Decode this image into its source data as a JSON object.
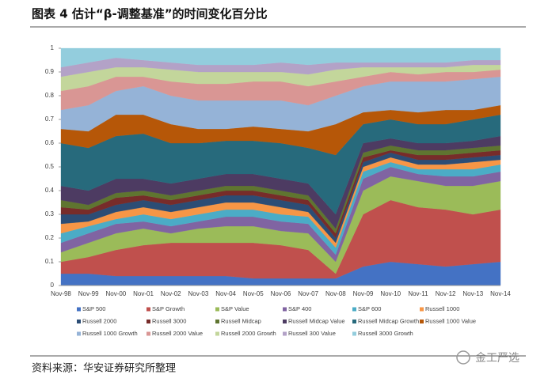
{
  "chart_data": {
    "type": "stacked_area",
    "title": "图表 4 估计“β-调整基准”的时间变化百分比",
    "categories": [
      "Nov-98",
      "Nov-99",
      "Nov-00",
      "Nov-01",
      "Nov-02",
      "Nov-03",
      "Nov-04",
      "Nov-05",
      "Nov-06",
      "Nov-07",
      "Nov-08",
      "Nov-09",
      "Nov-10",
      "Nov-11",
      "Nov-12",
      "Nov-13",
      "Nov-14"
    ],
    "ylim": [
      0,
      1
    ],
    "yticks": [
      0,
      0.1,
      0.2,
      0.3,
      0.4,
      0.5,
      0.6,
      0.7,
      0.8,
      0.9,
      1
    ],
    "series": [
      {
        "name": "S&P 500",
        "color": "#4472c4",
        "values": [
          0.05,
          0.05,
          0.04,
          0.04,
          0.04,
          0.04,
          0.04,
          0.03,
          0.03,
          0.03,
          0.03,
          0.08,
          0.1,
          0.09,
          0.08,
          0.09,
          0.1
        ]
      },
      {
        "name": "S&P Growth",
        "color": "#c0504d",
        "values": [
          0.05,
          0.07,
          0.11,
          0.13,
          0.14,
          0.14,
          0.14,
          0.15,
          0.14,
          0.12,
          0.02,
          0.22,
          0.26,
          0.24,
          0.24,
          0.21,
          0.22
        ]
      },
      {
        "name": "S&P Value",
        "color": "#9bbb59",
        "values": [
          0.04,
          0.06,
          0.07,
          0.07,
          0.04,
          0.06,
          0.07,
          0.07,
          0.06,
          0.07,
          0.05,
          0.1,
          0.1,
          0.11,
          0.1,
          0.12,
          0.12
        ]
      },
      {
        "name": "S&P 400",
        "color": "#8064a2",
        "values": [
          0.04,
          0.04,
          0.04,
          0.03,
          0.03,
          0.03,
          0.04,
          0.04,
          0.04,
          0.04,
          0.03,
          0.05,
          0.04,
          0.03,
          0.04,
          0.04,
          0.04
        ]
      },
      {
        "name": "S&P 600",
        "color": "#4bacc6",
        "values": [
          0.04,
          0.03,
          0.02,
          0.03,
          0.03,
          0.03,
          0.03,
          0.03,
          0.03,
          0.03,
          0.03,
          0.03,
          0.02,
          0.02,
          0.03,
          0.03,
          0.03
        ]
      },
      {
        "name": "Russell 1000",
        "color": "#f79646",
        "values": [
          0.04,
          0.02,
          0.03,
          0.03,
          0.03,
          0.03,
          0.03,
          0.03,
          0.03,
          0.02,
          0.02,
          0.02,
          0.02,
          0.02,
          0.02,
          0.03,
          0.02
        ]
      },
      {
        "name": "Russell 2000",
        "color": "#2c4d75",
        "values": [
          0.04,
          0.03,
          0.03,
          0.03,
          0.03,
          0.03,
          0.03,
          0.03,
          0.03,
          0.03,
          0.02,
          0.02,
          0.02,
          0.02,
          0.02,
          0.02,
          0.02
        ]
      },
      {
        "name": "Russell 3000",
        "color": "#772c2a",
        "values": [
          0.03,
          0.02,
          0.03,
          0.02,
          0.02,
          0.02,
          0.02,
          0.02,
          0.02,
          0.02,
          0.02,
          0.02,
          0.01,
          0.02,
          0.02,
          0.02,
          0.02
        ]
      },
      {
        "name": "Russell Midcap",
        "color": "#5f7530",
        "values": [
          0.03,
          0.02,
          0.02,
          0.02,
          0.02,
          0.02,
          0.02,
          0.02,
          0.02,
          0.02,
          0.02,
          0.02,
          0.02,
          0.02,
          0.02,
          0.02,
          0.02
        ]
      },
      {
        "name": "Russell Midcap Value",
        "color": "#4d3b62",
        "values": [
          0.06,
          0.06,
          0.06,
          0.05,
          0.05,
          0.05,
          0.05,
          0.05,
          0.05,
          0.05,
          0.06,
          0.04,
          0.03,
          0.03,
          0.03,
          0.03,
          0.04
        ]
      },
      {
        "name": "Russell Midcap Growth",
        "color": "#276a7c",
        "values": [
          0.18,
          0.18,
          0.18,
          0.19,
          0.17,
          0.15,
          0.14,
          0.14,
          0.15,
          0.15,
          0.25,
          0.08,
          0.08,
          0.08,
          0.08,
          0.09,
          0.09
        ]
      },
      {
        "name": "Russell 1000 Value",
        "color": "#b65708",
        "values": [
          0.06,
          0.07,
          0.09,
          0.08,
          0.08,
          0.06,
          0.05,
          0.06,
          0.06,
          0.07,
          0.13,
          0.05,
          0.04,
          0.05,
          0.06,
          0.04,
          0.04
        ]
      },
      {
        "name": "Russell 1000 Growth",
        "color": "#95b3d7",
        "values": [
          0.08,
          0.11,
          0.1,
          0.12,
          0.12,
          0.12,
          0.12,
          0.11,
          0.12,
          0.11,
          0.12,
          0.11,
          0.12,
          0.13,
          0.12,
          0.13,
          0.12
        ]
      },
      {
        "name": "Russell 2000 Value",
        "color": "#d99694",
        "values": [
          0.08,
          0.08,
          0.06,
          0.04,
          0.06,
          0.07,
          0.07,
          0.08,
          0.08,
          0.08,
          0.06,
          0.04,
          0.04,
          0.03,
          0.04,
          0.03,
          0.03
        ]
      },
      {
        "name": "Russell 2000 Growth",
        "color": "#c3d69b",
        "values": [
          0.06,
          0.06,
          0.04,
          0.04,
          0.05,
          0.05,
          0.05,
          0.04,
          0.04,
          0.05,
          0.05,
          0.04,
          0.02,
          0.03,
          0.02,
          0.03,
          0.02
        ]
      },
      {
        "name": "Russell 300 Value",
        "color": "#b3a2c7",
        "values": [
          0.04,
          0.04,
          0.04,
          0.03,
          0.03,
          0.03,
          0.03,
          0.03,
          0.04,
          0.04,
          0.03,
          0.02,
          0.02,
          0.02,
          0.02,
          0.02,
          0.02
        ]
      },
      {
        "name": "Russell 3000 Growth",
        "color": "#93cddd",
        "values": [
          0.08,
          0.06,
          0.04,
          0.05,
          0.06,
          0.07,
          0.07,
          0.07,
          0.06,
          0.07,
          0.06,
          0.06,
          0.06,
          0.06,
          0.06,
          0.05,
          0.05
        ]
      }
    ]
  },
  "source": "资料来源：华安证券研究所整理",
  "watermark": "金工严选"
}
